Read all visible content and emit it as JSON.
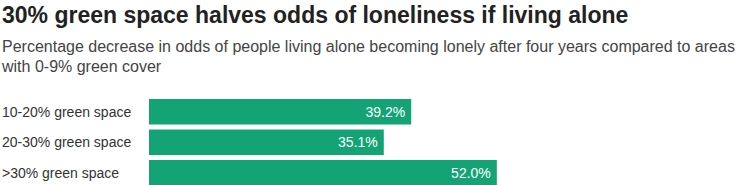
{
  "chart_data": {
    "type": "bar",
    "orientation": "horizontal",
    "title": "30% green space halves odds of loneliness if living alone",
    "subtitle": "Percentage decrease in odds of people living alone becoming lonely after four years compared to areas with 0-9% green cover",
    "categories": [
      "10-20% green space",
      "20-30% green space",
      ">30% green space"
    ],
    "values": [
      39.2,
      35.1,
      52.0
    ],
    "value_labels": [
      "39.2%",
      "35.1%",
      "52.0%"
    ],
    "color": "#14a374",
    "xlim": [
      0,
      90
    ],
    "grid": false,
    "data_labels": true,
    "tick_labels": "y"
  }
}
